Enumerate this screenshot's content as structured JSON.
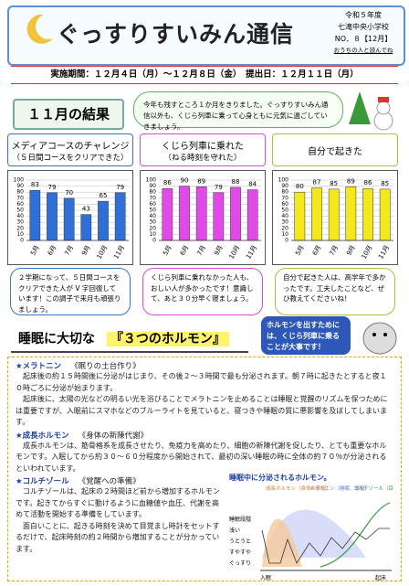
{
  "header": {
    "title": "ぐっすりすいみん通信",
    "year": "令和５年度",
    "school": "七滝中央小学校",
    "issue": "NO．８【12月】",
    "note": "おうちの人と読んでね"
  },
  "period": "実施期間：１２月４日（月）～１２月８日（金）　提出日：１２月１１日（月）",
  "results": {
    "heading": "１１月の結果",
    "intro": "今年も残すところ１か月をきりました。ぐっすりすいみん通信以外も、くじら列車に乗って心身ともに元気に過ごしていきましょう。"
  },
  "chart_data": [
    {
      "type": "bar",
      "title": "メディアコースのチャレンジ",
      "subtitle": "（５日間コースをクリアできた）",
      "categories": [
        "5月",
        "6月",
        "7月",
        "9月",
        "10月",
        "11月"
      ],
      "values": [
        83,
        79,
        70,
        43,
        65,
        79
      ],
      "color": "#2f6fd6",
      "ylim": [
        0,
        100
      ],
      "yticks": [
        0,
        10,
        20,
        30,
        40,
        50,
        60,
        70,
        80,
        90,
        100
      ],
      "grid": true,
      "comment": "２学期になって、５日間コースをクリアできた人が V 字回復しています！この調子で来月も頑張りましょう。"
    },
    {
      "type": "bar",
      "title": "くじら列車に乗れた",
      "subtitle": "（ねる時刻を守れた）",
      "categories": [
        "5月",
        "6月",
        "7月",
        "9月",
        "10月",
        "11月"
      ],
      "values": [
        86,
        90,
        89,
        79,
        88,
        84
      ],
      "color": "#e04ae6",
      "ylim": [
        0,
        100
      ],
      "yticks": [
        0,
        10,
        20,
        30,
        40,
        50,
        60,
        70,
        80,
        90,
        100
      ],
      "grid": true,
      "comment": "くじら列車に乗れなかった人も、おしい人が多かったです！意識して、あと３０分早く寝ましょう。"
    },
    {
      "type": "bar",
      "title": "自分で起きた",
      "categories": [
        "5月",
        "6月",
        "7月",
        "9月",
        "10月",
        "11月"
      ],
      "values": [
        80,
        87,
        85,
        89,
        86,
        85
      ],
      "color": "#f3e81c",
      "ylim": [
        0,
        100
      ],
      "yticks": [
        0,
        10,
        20,
        30,
        40,
        50,
        60,
        70,
        80,
        90,
        100
      ],
      "grid": true,
      "comment": "自分で起きた人は、高学年で多かったです。工夫したことなど、ぜひ教えてくださいね！"
    }
  ],
  "hormones": {
    "heading_a": "睡眠に大切な",
    "heading_b": "『３つのホルモン』",
    "callout": "ホルモンを出すためには、くじら列車に乗ることが大事です！",
    "items": [
      {
        "title": "★メラトニン",
        "subtitle": "《眠りの土台作り》",
        "paragraphs": [
          "起床後の約１５時間後に分泌がはじまり、その後２～３時間で最も分泌されます。朝７時に起きたとすると夜１０時ごろに分泌が始まります。",
          "起床後に、太陽の光などの明るい光を浴びることでメラトニンを止めることは睡眠と覚醒のリズムを保つためには重要ですが、入眠前にスマホなどのブルーライトを見ていると、寝つきや睡眠の質に悪影響を及ぼしてしまいます。"
        ]
      },
      {
        "title": "★成長ホルモン",
        "subtitle": "《身体の新陳代謝》",
        "paragraphs": [
          "成長ホルモンは、筋骨格系を成長させたり、免疫力を高めたり、細胞の新陳代謝を促したり、とても重要なホルモンです。入眠してから約３０～６０分程度から開始されて、最初の深い睡眠の時に全体の約７０％が分泌されるといわれています。"
        ]
      },
      {
        "title": "★コルチゾール",
        "subtitle": "《覚醒への準備》",
        "paragraphs": [
          "コルチゾールは、起床の２時間ほど前から増加するホルモンです。起きてからすぐに動けるように血糖値や血圧、代謝を高めて活動を開始する準備をしています。",
          "面白いことに、起きる時刻を決めて目覚まし時計をセットするだけで、起床時刻の約２時間から増加することが分かっています。"
        ]
      }
    ],
    "figure": {
      "title": "睡眠中に分泌されるホルモン。",
      "legend": [
        "成長ホルモン（身体の修復）",
        "メラトニン（睡眠、修復）",
        "コルチゾール（目覚め）"
      ],
      "y_label": "睡眠段階",
      "levels": [
        "浅い",
        "うとうと",
        "すやすや",
        "ぐっすり"
      ],
      "x_labels": [
        "入眠",
        "起床"
      ]
    }
  }
}
